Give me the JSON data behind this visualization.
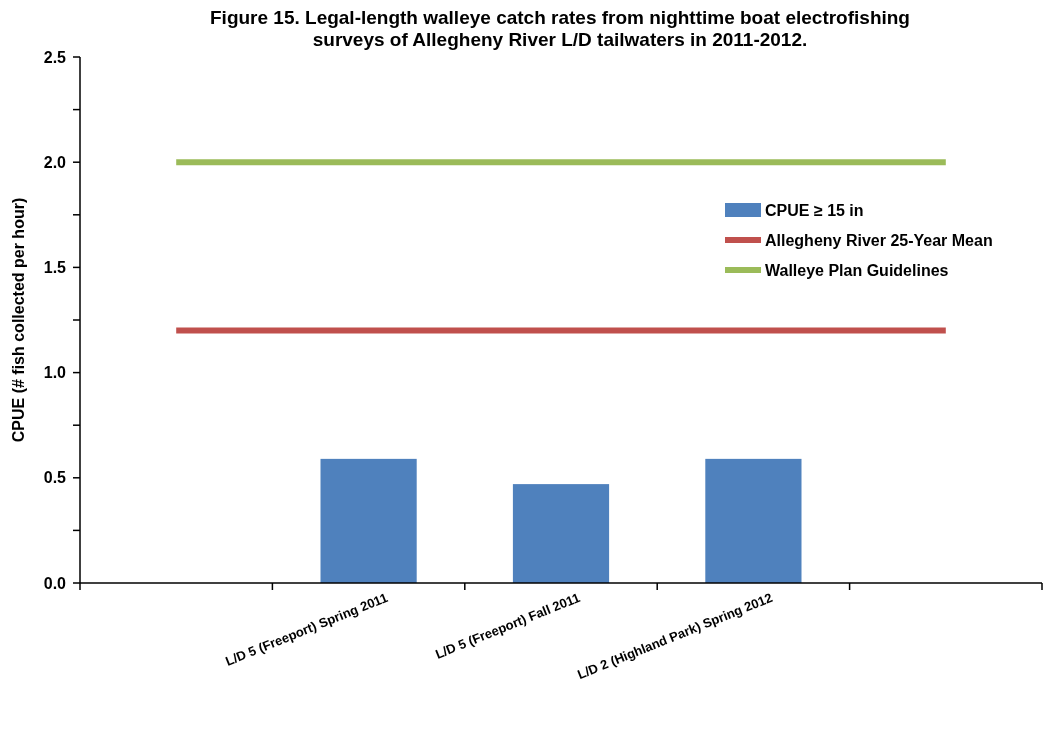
{
  "chart_data": {
    "type": "bar",
    "title": "Figure 15.  Legal-length walleye catch rates from nighttime boat electrofishing surveys of Allegheny River L/D tailwaters in 2011-2012.",
    "ylabel": "CPUE  (#  fish  collected  per  hour)",
    "categories": [
      null,
      "L/D 5 (Freeport) Spring 2011",
      "L/D 5 (Freeport) Fall 2011",
      "L/D 2 (Highland Park) Spring 2012",
      null
    ],
    "series": [
      {
        "name": "CPUE ≥ 15 in",
        "color": "#4f81bd",
        "values": [
          null,
          0.59,
          0.47,
          0.59,
          null
        ]
      },
      {
        "name": "Allegheny River 25-Year Mean",
        "type": "line",
        "color": "#c0504d",
        "values": [
          1.2,
          1.2,
          1.2,
          1.2,
          1.2
        ]
      },
      {
        "name": "Walleye Plan Guidelines",
        "type": "line",
        "color": "#9bbb59",
        "values": [
          2.0,
          2.0,
          2.0,
          2.0,
          2.0
        ]
      }
    ],
    "ylim": [
      0,
      2.5
    ],
    "yticks": [
      {
        "value": 0,
        "label": "0.0"
      },
      {
        "value": 0.25,
        "label": null
      },
      {
        "value": 0.5,
        "label": "0.5"
      },
      {
        "value": 0.75,
        "label": null
      },
      {
        "value": 1,
        "label": "1.0"
      },
      {
        "value": 1.25,
        "label": null
      },
      {
        "value": 1.5,
        "label": "1.5"
      },
      {
        "value": 1.75,
        "label": null
      },
      {
        "value": 2,
        "label": "2.0"
      },
      {
        "value": 2.25,
        "label": null
      },
      2.5
    ],
    "grid": false,
    "legend": "right",
    "marker": "none",
    "line_style": "solid"
  }
}
